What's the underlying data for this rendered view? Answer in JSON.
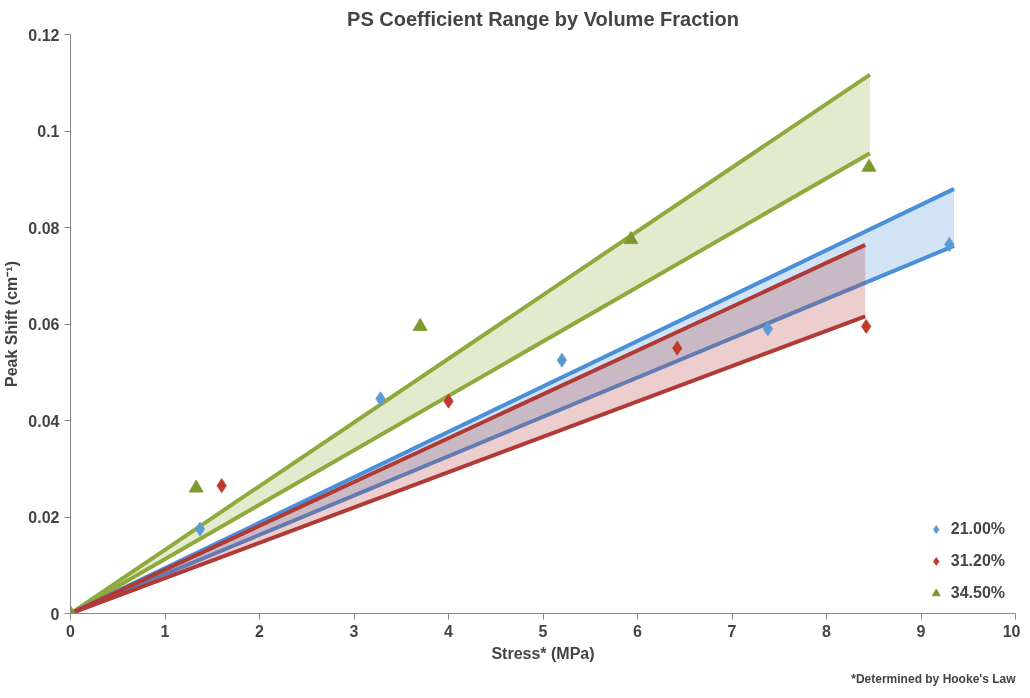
{
  "chart_data": {
    "type": "scatter",
    "title": "PS Coefficient Range by Volume Fraction",
    "xlabel": "Stress* (MPa)",
    "ylabel": "Peak Shift (cm⁻¹)",
    "annotations": [
      "*Determined by Hooke's Law"
    ],
    "xlim": [
      0,
      10
    ],
    "xticks": [
      0,
      1,
      2,
      3,
      4,
      5,
      6,
      7,
      8,
      9,
      10
    ],
    "ylim": [
      0,
      0.12
    ],
    "yticks": [
      0,
      0.02,
      0.04,
      0.06,
      0.08,
      0.1,
      0.12
    ],
    "legend": "bottom right",
    "series": [
      {
        "type": "line",
        "color": "#8faa3c",
        "x": [
          0,
          8.46
        ],
        "values": [
          0,
          0.1117
        ]
      },
      {
        "type": "line",
        "color": "#8faa3c",
        "x": [
          0,
          8.46
        ],
        "values": [
          0,
          0.0954
        ],
        "lower": [
          0,
          0.0954
        ],
        "upper": [
          0,
          0.1117
        ]
      },
      {
        "type": "line",
        "color": "#4a90d9",
        "x": [
          0,
          9.35
        ],
        "values": [
          0,
          0.088
        ]
      },
      {
        "type": "line",
        "color": "#4a90d9",
        "x": [
          0,
          9.35
        ],
        "values": [
          0,
          0.0762
        ],
        "lower": [
          0,
          0.0762
        ],
        "upper": [
          0,
          0.088
        ]
      },
      {
        "type": "line",
        "color": "#b03a36",
        "x": [
          0,
          8.41
        ],
        "values": [
          0,
          0.0764
        ]
      },
      {
        "type": "line",
        "color": "#b03a36",
        "x": [
          0,
          8.41
        ],
        "values": [
          0,
          0.0616
        ],
        "lower": [
          0,
          0.0616
        ],
        "upper": [
          0,
          0.0764
        ]
      },
      {
        "name": "21.00%",
        "color": "#5b9bd5",
        "marker": "diamond",
        "x": [
          1.37,
          3.28,
          5.2,
          7.38,
          9.3
        ],
        "values": [
          0.0175,
          0.0445,
          0.0525,
          0.059,
          0.0765
        ]
      },
      {
        "name": "31.20%",
        "color": "#c0392b",
        "marker": "diamond",
        "x": [
          1.6,
          4.0,
          6.42,
          8.42
        ],
        "values": [
          0.0265,
          0.044,
          0.055,
          0.0595
        ]
      },
      {
        "name": "34.50%",
        "color": "#7a9a2e",
        "marker": "triangle",
        "x": [
          0,
          1.33,
          3.7,
          5.93,
          8.45
        ],
        "values": [
          0,
          0.026,
          0.0595,
          0.0775,
          0.0925
        ]
      }
    ]
  }
}
